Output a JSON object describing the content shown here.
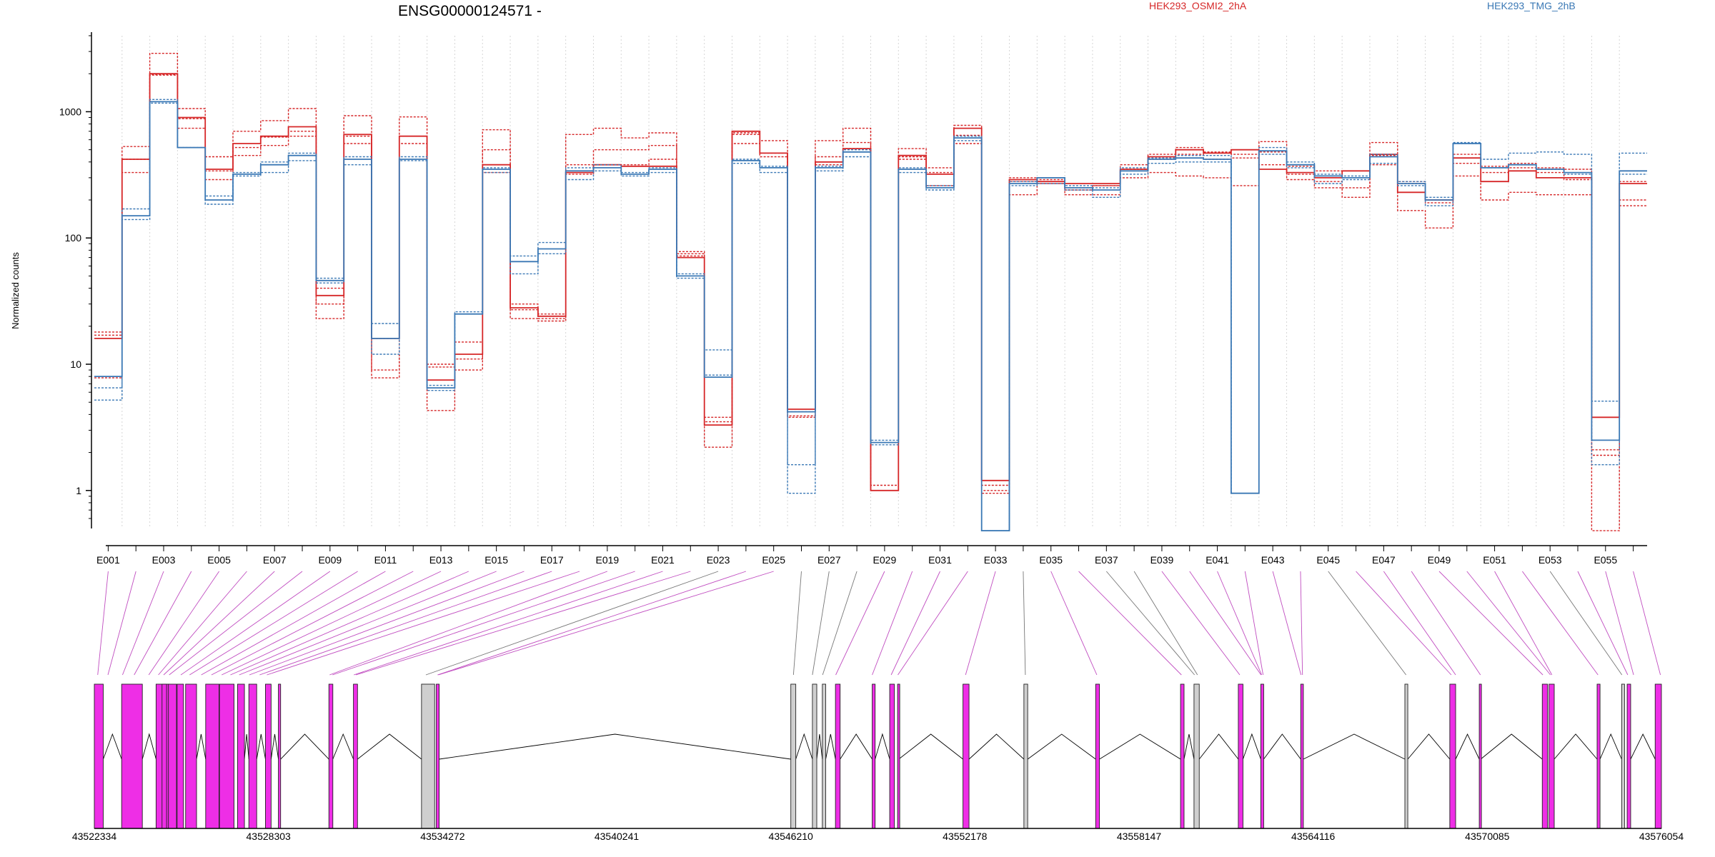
{
  "chart_data": {
    "type": "line",
    "title": "ENSG00000124571 -",
    "ylabel": "Normalized counts",
    "yscale": "log",
    "ylim": [
      0.5,
      4000
    ],
    "yticks": [
      1,
      10,
      100,
      1000
    ],
    "ytick_labels": [
      "1",
      "10",
      "100",
      "1000"
    ],
    "categories": [
      "E001",
      "E002",
      "E003",
      "E004",
      "E005",
      "E006",
      "E007",
      "E008",
      "E009",
      "E010",
      "E011",
      "E012",
      "E013",
      "E014",
      "E015",
      "E016",
      "E017",
      "E018",
      "E019",
      "E020",
      "E021",
      "E022",
      "E023",
      "E024",
      "E025",
      "E026",
      "E027",
      "E028",
      "E029",
      "E030",
      "E031",
      "E032",
      "E033",
      "E034",
      "E035",
      "E036",
      "E037",
      "E038",
      "E039",
      "E040",
      "E041",
      "E042",
      "E043",
      "E044",
      "E045",
      "E046",
      "E047",
      "E048",
      "E049",
      "E050",
      "E051",
      "E052",
      "E053",
      "E054",
      "E055",
      "E056"
    ],
    "xtick_labels": [
      "E001",
      "E003",
      "E005",
      "E007",
      "E009",
      "E011",
      "E013",
      "E015",
      "E017",
      "E019",
      "E021",
      "E023",
      "E025",
      "E027",
      "E029",
      "E031",
      "E033",
      "E035",
      "E037",
      "E039",
      "E041",
      "E043",
      "E045",
      "E047",
      "E049",
      "E051",
      "E053",
      "E055"
    ],
    "legend": [
      {
        "name": "HEK293_OSMI2_2hA",
        "color": "#d62728"
      },
      {
        "name": "HEK293_TMG_2hB",
        "color": "#3a78b5"
      }
    ],
    "series": [
      {
        "name": "HEK293_OSMI2_2hA",
        "group": "OSMI2",
        "style": "solid",
        "values": [
          16,
          420,
          2000,
          900,
          350,
          560,
          640,
          760,
          35,
          660,
          16,
          640,
          7.5,
          12,
          380,
          28,
          24,
          330,
          380,
          370,
          370,
          70,
          3.3,
          700,
          470,
          4.4,
          400,
          510,
          1.0,
          450,
          320,
          740,
          1.2,
          290,
          280,
          270,
          270,
          350,
          440,
          500,
          470,
          500,
          350,
          330,
          300,
          340,
          460,
          230,
          200,
          430,
          280,
          340,
          300,
          300,
          3.8,
          270
        ]
      },
      {
        "name": "HEK293_OSMI2_2hA",
        "group": "OSMI2",
        "style": "dashed",
        "values": [
          18,
          530,
          2900,
          1060,
          440,
          700,
          850,
          1060,
          23,
          930,
          7.8,
          910,
          4.3,
          9,
          720,
          23,
          22,
          660,
          740,
          620,
          680,
          78,
          2.2,
          680,
          590,
          3.9,
          590,
          740,
          1.1,
          510,
          360,
          780,
          0.95,
          220,
          270,
          220,
          220,
          300,
          330,
          310,
          300,
          260,
          580,
          290,
          250,
          210,
          570,
          165,
          120,
          310,
          200,
          230,
          220,
          220,
          0.48,
          200
        ]
      },
      {
        "name": "HEK293_OSMI2_2hA",
        "group": "OSMI2",
        "style": "dashed",
        "values": [
          17,
          330,
          1950,
          740,
          290,
          450,
          540,
          640,
          40,
          560,
          9,
          560,
          10,
          15,
          500,
          30,
          25,
          380,
          500,
          500,
          540,
          72,
          3.8,
          560,
          470,
          3.8,
          440,
          570,
          1.0,
          420,
          260,
          560,
          1.0,
          280,
          280,
          250,
          260,
          380,
          460,
          460,
          420,
          430,
          380,
          320,
          280,
          250,
          380,
          280,
          190,
          390,
          330,
          360,
          330,
          290,
          2.1,
          180
        ]
      },
      {
        "name": "HEK293_OSMI2_2hA",
        "group": "OSMI2",
        "style": "dashed",
        "values": [
          7.8,
          420,
          1980,
          880,
          340,
          520,
          630,
          700,
          30,
          640,
          16,
          640,
          9.5,
          11,
          330,
          27,
          23,
          320,
          380,
          380,
          420,
          75,
          3.5,
          660,
          440,
          4.2,
          380,
          510,
          1.0,
          440,
          330,
          650,
          1.1,
          300,
          290,
          240,
          260,
          350,
          420,
          520,
          480,
          460,
          480,
          370,
          340,
          340,
          450,
          270,
          200,
          460,
          370,
          390,
          360,
          350,
          1.9,
          280
        ]
      },
      {
        "name": "HEK293_TMG_2hB",
        "group": "TMG",
        "style": "solid",
        "values": [
          8,
          150,
          1200,
          520,
          200,
          320,
          380,
          450,
          46,
          420,
          16,
          420,
          6.5,
          25,
          350,
          65,
          82,
          340,
          360,
          320,
          350,
          50,
          7.9,
          410,
          360,
          4.2,
          360,
          480,
          2.4,
          350,
          250,
          620,
          0.48,
          270,
          300,
          250,
          240,
          340,
          420,
          430,
          420,
          0.95,
          490,
          380,
          310,
          300,
          440,
          270,
          200,
          560,
          360,
          380,
          350,
          330,
          2.5,
          340
        ]
      },
      {
        "name": "HEK293_TMG_2hB",
        "group": "TMG",
        "style": "dashed",
        "values": [
          5.2,
          140,
          1170,
          520,
          185,
          310,
          330,
          410,
          44,
          380,
          12,
          410,
          6.2,
          25,
          330,
          52,
          75,
          290,
          340,
          310,
          330,
          48,
          13,
          390,
          330,
          0.95,
          340,
          440,
          2.3,
          330,
          240,
          590,
          0.48,
          260,
          270,
          240,
          210,
          320,
          390,
          400,
          400,
          0.95,
          460,
          360,
          270,
          290,
          390,
          260,
          180,
          560,
          360,
          380,
          350,
          320,
          1.6,
          320
        ]
      },
      {
        "name": "HEK293_TMG_2hB",
        "group": "TMG",
        "style": "dashed",
        "values": [
          6.5,
          170,
          1250,
          520,
          215,
          330,
          400,
          470,
          48,
          440,
          21,
          440,
          6.8,
          26,
          360,
          72,
          92,
          360,
          380,
          330,
          360,
          52,
          8.2,
          420,
          370,
          1.6,
          370,
          500,
          2.5,
          360,
          260,
          640,
          0.48,
          280,
          300,
          260,
          250,
          360,
          430,
          450,
          450,
          0.95,
          520,
          400,
          320,
          310,
          460,
          280,
          210,
          570,
          420,
          470,
          480,
          460,
          5.1,
          470
        ]
      }
    ],
    "gene_model": {
      "coord_ticks": [
        "43522334",
        "43528303",
        "43534272",
        "43540241",
        "43546210",
        "43552178",
        "43558147",
        "43564116",
        "43570085",
        "43576054"
      ],
      "exon_start": [
        43522334,
        43523270,
        43524451,
        43524655,
        43524874,
        43525171,
        43525463,
        43526151,
        43526624,
        43527244,
        43527631,
        43528200,
        43528644,
        43530375,
        43531216,
        43533550,
        43534057,
        43546210,
        43546950,
        43547290,
        43547740,
        43549000,
        43549600,
        43549870,
        43552111,
        43554200,
        43556660,
        43559570,
        43560031,
        43561550,
        43562320,
        43563690,
        43567260,
        43568800,
        43569810,
        43571970,
        43572200,
        43573850,
        43574690,
        43574880,
        43575840
      ],
      "exon_end": [
        43522640,
        43523980,
        43524890,
        43524810,
        43525151,
        43525390,
        43525838,
        43526608,
        43527124,
        43527480,
        43527900,
        43528394,
        43528720,
        43530510,
        43531356,
        43534000,
        43534156,
        43546380,
        43547100,
        43547406,
        43547900,
        43549100,
        43549760,
        43549910,
        43552319,
        43554330,
        43556790,
        43559690,
        43560211,
        43561710,
        43562420,
        43563780,
        43567360,
        43569000,
        43569860,
        43572150,
        43572380,
        43573950,
        43574790,
        43575000,
        43576054
      ],
      "exon_tested": [
        true,
        true,
        true,
        true,
        true,
        true,
        true,
        true,
        true,
        true,
        true,
        true,
        true,
        true,
        true,
        false,
        true,
        false,
        false,
        false,
        true,
        true,
        true,
        true,
        true,
        false,
        true,
        true,
        false,
        true,
        true,
        true,
        false,
        true,
        true,
        true,
        true,
        true,
        false,
        true,
        true
      ],
      "intron_spans": [
        [
          43534156,
          43546210
        ],
        [
          43552319,
          43554200
        ],
        [
          43554330,
          43556660
        ],
        [
          43556790,
          43559570
        ],
        [
          43561710,
          43562320
        ],
        [
          43563780,
          43567260
        ],
        [
          43567360,
          43568800
        ],
        [
          43569000,
          43569810
        ],
        [
          43569860,
          43571970
        ],
        [
          43572380,
          43573850
        ],
        [
          43575000,
          43575840
        ]
      ],
      "bin_to_coord": [
        43522450,
        43522800,
        43523300,
        43523700,
        43524200,
        43524530,
        43524710,
        43524900,
        43525300,
        43525600,
        43526000,
        43526350,
        43526700,
        43527000,
        43527300,
        43527650,
        43528000,
        43528250,
        43530400,
        43530500,
        43531230,
        43531300,
        43533700,
        43534100,
        43534130,
        43546300,
        43546950,
        43547300,
        43547750,
        43549000,
        43549650,
        43549880,
        43552200,
        43554250,
        43556700,
        43559600,
        43560050,
        43560150,
        43561600,
        43562330,
        43562350,
        43562400,
        43563700,
        43563750,
        43567300,
        43568850,
        43569000,
        43569850,
        43571990,
        43572250,
        43572300,
        43573880,
        43574700,
        43574900,
        43575100,
        43576020
      ]
    }
  }
}
